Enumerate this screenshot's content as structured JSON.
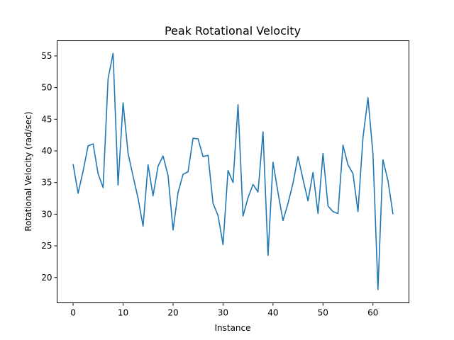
{
  "chart_data": {
    "type": "line",
    "title": "Peak Rotational Velocity",
    "xlabel": "Instance",
    "ylabel": "Rotational Velocity (rad/sec)",
    "xlim": [
      -3.2,
      67.2
    ],
    "ylim": [
      16.0,
      57.4
    ],
    "xticks": [
      0,
      10,
      20,
      30,
      40,
      50,
      60
    ],
    "yticks": [
      20,
      25,
      30,
      35,
      40,
      45,
      50,
      55
    ],
    "grid": false,
    "legend": "none",
    "series": [
      {
        "color": "#1f77b4",
        "x": [
          0,
          1,
          2,
          3,
          4,
          5,
          6,
          7,
          8,
          9,
          10,
          11,
          12,
          13,
          14,
          15,
          16,
          17,
          18,
          19,
          20,
          21,
          22,
          23,
          24,
          25,
          26,
          27,
          28,
          29,
          30,
          31,
          32,
          33,
          34,
          35,
          36,
          37,
          38,
          39,
          40,
          41,
          42,
          43,
          44,
          45,
          46,
          47,
          48,
          49,
          50,
          51,
          52,
          53,
          54,
          55,
          56,
          57,
          58,
          59,
          60,
          61,
          62,
          63,
          64
        ],
        "values": [
          37.9,
          33.3,
          36.8,
          40.8,
          41.1,
          36.4,
          34.2,
          51.4,
          55.4,
          34.6,
          47.6,
          39.6,
          36.0,
          32.5,
          28.1,
          37.8,
          32.9,
          37.6,
          39.2,
          36.1,
          27.5,
          33.4,
          36.3,
          36.7,
          42.0,
          41.9,
          39.1,
          39.3,
          31.7,
          29.8,
          25.2,
          36.9,
          35.0,
          47.3,
          29.7,
          32.6,
          34.7,
          33.5,
          43.0,
          23.5,
          38.2,
          33.4,
          29.0,
          31.7,
          34.9,
          39.1,
          35.5,
          32.1,
          36.6,
          30.1,
          39.6,
          31.3,
          30.4,
          30.1,
          40.9,
          37.8,
          36.4,
          30.4,
          42.1,
          48.4,
          39.5,
          18.1,
          38.6,
          35.3,
          30.0
        ]
      }
    ]
  }
}
